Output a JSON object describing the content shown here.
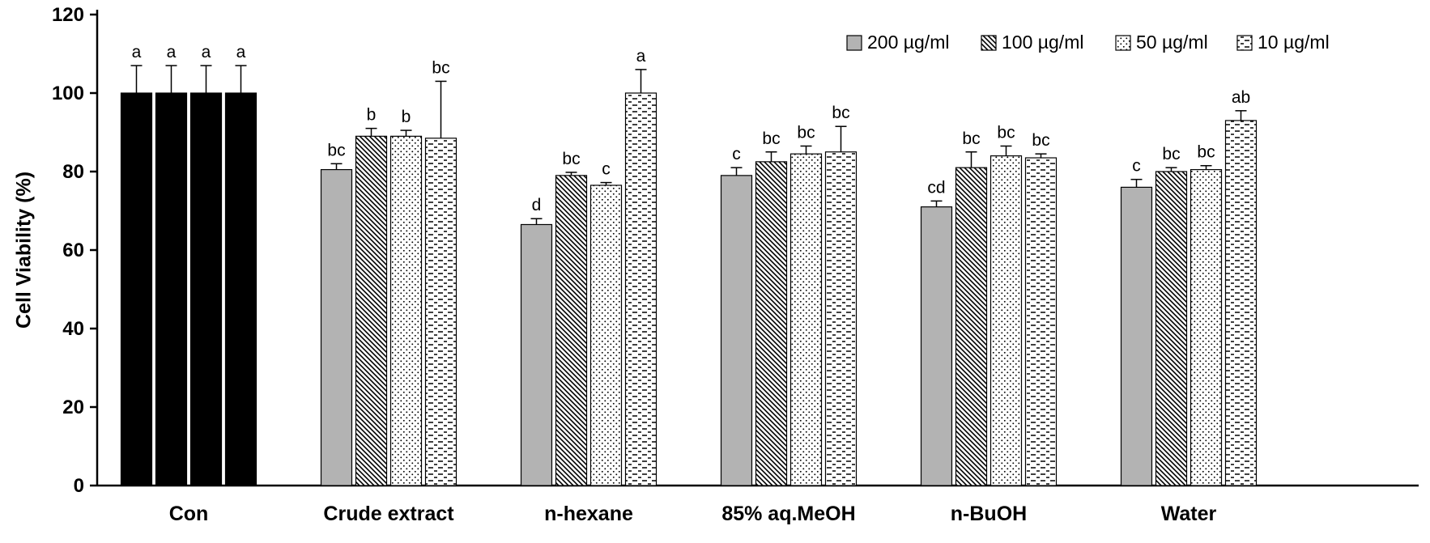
{
  "chart_data": {
    "type": "bar",
    "title": "",
    "xlabel": "",
    "ylabel": "Cell Viability (%)",
    "ylim": [
      0,
      120
    ],
    "yticks": [
      0,
      20,
      40,
      60,
      80,
      100,
      120
    ],
    "grid": false,
    "legend_position": "top-right",
    "categories": [
      "Con",
      "Crude extract",
      "n-hexane",
      "85% aq.MeOH",
      "n-BuOH",
      "Water"
    ],
    "control": {
      "category_index": 0,
      "fill": "#000000",
      "note": "All Con bars are solid black regardless of concentration"
    },
    "series": [
      {
        "name": "200 µg/ml",
        "pattern": "solid",
        "fill": "#b3b3b3",
        "values": [
          100,
          80.5,
          66.5,
          79,
          71,
          76
        ],
        "errors": [
          7,
          1.5,
          1.5,
          2,
          1.5,
          2
        ],
        "letters": [
          "a",
          "bc",
          "d",
          "c",
          "cd",
          "c"
        ]
      },
      {
        "name": "100 µg/ml",
        "pattern": "diagonal",
        "fill": "#ffffff",
        "values": [
          100,
          89,
          79,
          82.5,
          81,
          80
        ],
        "errors": [
          7,
          2,
          0.8,
          2.5,
          4,
          1
        ],
        "letters": [
          "a",
          "b",
          "bc",
          "bc",
          "bc",
          "bc"
        ]
      },
      {
        "name": "50 µg/ml",
        "pattern": "dots",
        "fill": "#ffffff",
        "values": [
          100,
          89,
          76.5,
          84.5,
          84,
          80.5
        ],
        "errors": [
          7,
          1.5,
          0.7,
          2,
          2.5,
          1
        ],
        "letters": [
          "a",
          "b",
          "c",
          "bc",
          "bc",
          "bc"
        ]
      },
      {
        "name": "10 µg/ml",
        "pattern": "dashes",
        "fill": "#ffffff",
        "values": [
          100,
          88.5,
          100,
          85,
          83.5,
          93
        ],
        "errors": [
          7,
          14.5,
          6,
          6.5,
          1,
          2.5
        ],
        "letters": [
          "a",
          "bc",
          "a",
          "bc",
          "bc",
          "ab"
        ]
      }
    ]
  }
}
